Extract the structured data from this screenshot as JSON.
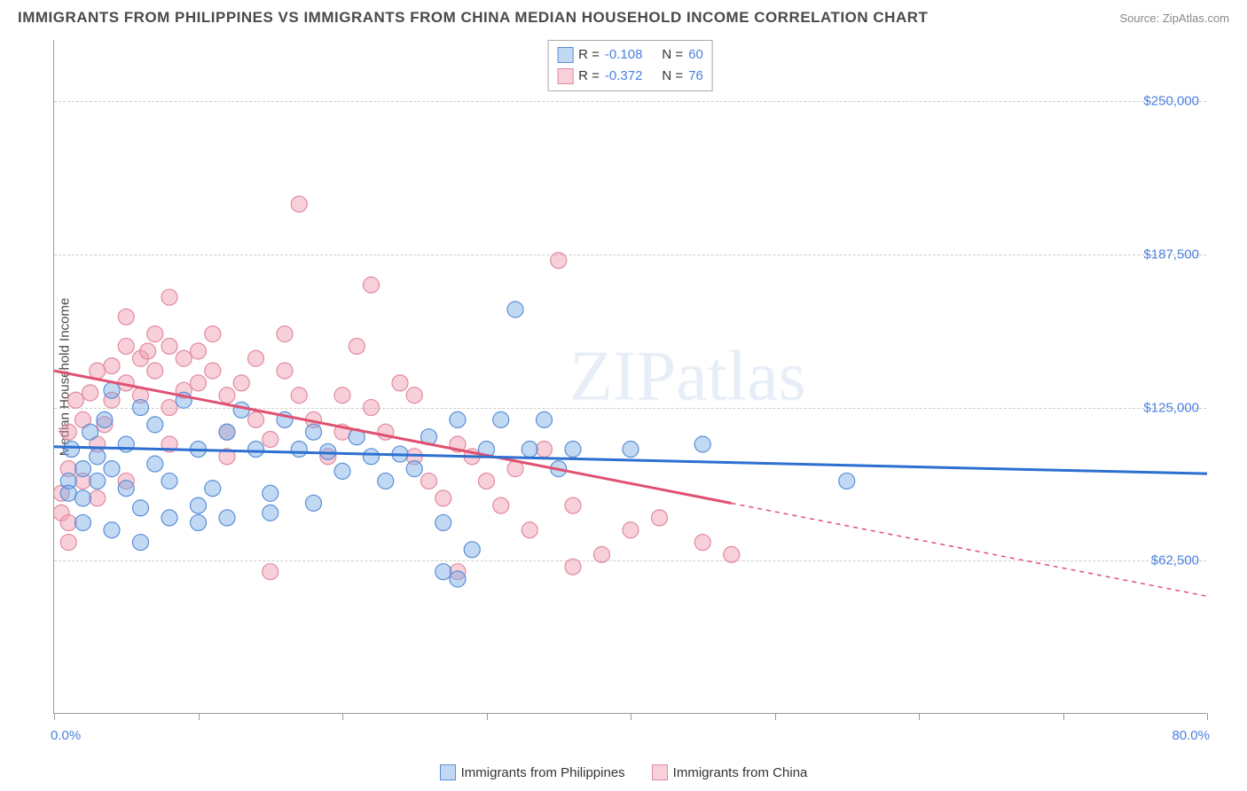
{
  "title": "IMMIGRANTS FROM PHILIPPINES VS IMMIGRANTS FROM CHINA MEDIAN HOUSEHOLD INCOME CORRELATION CHART",
  "source": "Source: ZipAtlas.com",
  "ylabel": "Median Household Income",
  "watermark": "ZIPatlas",
  "xlim": [
    0.0,
    80.0
  ],
  "ylim": [
    0,
    275000
  ],
  "xlim_labels": [
    "0.0%",
    "80.0%"
  ],
  "yticks": [
    62500,
    125000,
    187500,
    250000
  ],
  "ytick_labels": [
    "$62,500",
    "$125,000",
    "$187,500",
    "$250,000"
  ],
  "xtick_positions": [
    0,
    10,
    20,
    30,
    40,
    50,
    60,
    70,
    80
  ],
  "colors": {
    "series_a_fill": "rgba(120,170,230,0.45)",
    "series_a_stroke": "#5b8fd6",
    "series_b_fill": "rgba(240,150,170,0.45)",
    "series_b_stroke": "#e08aa0",
    "trend_a": "#2d6fd0",
    "trend_b": "#e05070",
    "grid": "#cccccc",
    "axis": "#999999",
    "tick_text": "#4a7fe0",
    "label_text": "#4a4a4a"
  },
  "stats_box": {
    "rows": [
      {
        "swatch": "a",
        "r_label": "R =",
        "r": "-0.108",
        "n_label": "N =",
        "n": "60"
      },
      {
        "swatch": "b",
        "r_label": "R =",
        "r": "-0.372",
        "n_label": "N =",
        "n": "76"
      }
    ]
  },
  "legend": [
    {
      "swatch": "a",
      "label": "Immigrants from Philippines"
    },
    {
      "swatch": "b",
      "label": "Immigrants from China"
    }
  ],
  "series_a": {
    "name": "Immigrants from Philippines",
    "points": [
      [
        1,
        95000
      ],
      [
        1,
        90000
      ],
      [
        1.2,
        108000
      ],
      [
        2,
        100000
      ],
      [
        2,
        88000
      ],
      [
        2.5,
        115000
      ],
      [
        3,
        105000
      ],
      [
        3,
        95000
      ],
      [
        3.5,
        120000
      ],
      [
        4,
        132000
      ],
      [
        4,
        100000
      ],
      [
        5,
        110000
      ],
      [
        5,
        92000
      ],
      [
        6,
        125000
      ],
      [
        6,
        84000
      ],
      [
        7,
        118000
      ],
      [
        7,
        102000
      ],
      [
        8,
        95000
      ],
      [
        8,
        80000
      ],
      [
        9,
        128000
      ],
      [
        10,
        108000
      ],
      [
        10,
        85000
      ],
      [
        11,
        92000
      ],
      [
        12,
        115000
      ],
      [
        12,
        80000
      ],
      [
        13,
        124000
      ],
      [
        14,
        108000
      ],
      [
        15,
        82000
      ],
      [
        15,
        90000
      ],
      [
        16,
        120000
      ],
      [
        17,
        108000
      ],
      [
        18,
        115000
      ],
      [
        18,
        86000
      ],
      [
        19,
        107000
      ],
      [
        20,
        99000
      ],
      [
        21,
        113000
      ],
      [
        22,
        105000
      ],
      [
        23,
        95000
      ],
      [
        24,
        106000
      ],
      [
        25,
        100000
      ],
      [
        26,
        113000
      ],
      [
        27,
        78000
      ],
      [
        27,
        58000
      ],
      [
        28,
        120000
      ],
      [
        28,
        55000
      ],
      [
        29,
        67000
      ],
      [
        30,
        108000
      ],
      [
        31,
        120000
      ],
      [
        32,
        165000
      ],
      [
        33,
        108000
      ],
      [
        34,
        120000
      ],
      [
        35,
        100000
      ],
      [
        36,
        108000
      ],
      [
        40,
        108000
      ],
      [
        45,
        110000
      ],
      [
        55,
        95000
      ],
      [
        2,
        78000
      ],
      [
        4,
        75000
      ],
      [
        6,
        70000
      ],
      [
        10,
        78000
      ]
    ],
    "trend": {
      "x1": 0,
      "y1": 109000,
      "x2": 80,
      "y2": 98000,
      "solid_to_x": 80
    }
  },
  "series_b": {
    "name": "Immigrants from China",
    "points": [
      [
        0.5,
        90000
      ],
      [
        0.5,
        82000
      ],
      [
        1,
        115000
      ],
      [
        1,
        100000
      ],
      [
        1,
        78000
      ],
      [
        1.5,
        128000
      ],
      [
        2,
        120000
      ],
      [
        2,
        95000
      ],
      [
        2.5,
        131000
      ],
      [
        3,
        140000
      ],
      [
        3,
        110000
      ],
      [
        3.5,
        118000
      ],
      [
        4,
        142000
      ],
      [
        4,
        128000
      ],
      [
        5,
        150000
      ],
      [
        5,
        135000
      ],
      [
        5,
        162000
      ],
      [
        6,
        145000
      ],
      [
        6,
        130000
      ],
      [
        6.5,
        148000
      ],
      [
        7,
        155000
      ],
      [
        7,
        140000
      ],
      [
        8,
        150000
      ],
      [
        8,
        125000
      ],
      [
        8,
        170000
      ],
      [
        9,
        145000
      ],
      [
        9,
        132000
      ],
      [
        10,
        148000
      ],
      [
        10,
        135000
      ],
      [
        11,
        155000
      ],
      [
        11,
        140000
      ],
      [
        12,
        130000
      ],
      [
        12,
        115000
      ],
      [
        13,
        135000
      ],
      [
        14,
        120000
      ],
      [
        14,
        145000
      ],
      [
        15,
        112000
      ],
      [
        16,
        140000
      ],
      [
        16,
        155000
      ],
      [
        17,
        130000
      ],
      [
        17,
        208000
      ],
      [
        18,
        120000
      ],
      [
        19,
        105000
      ],
      [
        20,
        115000
      ],
      [
        20,
        130000
      ],
      [
        21,
        150000
      ],
      [
        22,
        125000
      ],
      [
        22,
        175000
      ],
      [
        23,
        115000
      ],
      [
        24,
        135000
      ],
      [
        25,
        130000
      ],
      [
        25,
        105000
      ],
      [
        26,
        95000
      ],
      [
        27,
        88000
      ],
      [
        28,
        110000
      ],
      [
        28,
        58000
      ],
      [
        29,
        105000
      ],
      [
        30,
        95000
      ],
      [
        31,
        85000
      ],
      [
        32,
        100000
      ],
      [
        33,
        75000
      ],
      [
        34,
        108000
      ],
      [
        35,
        185000
      ],
      [
        36,
        85000
      ],
      [
        36,
        60000
      ],
      [
        38,
        65000
      ],
      [
        40,
        75000
      ],
      [
        42,
        80000
      ],
      [
        45,
        70000
      ],
      [
        47,
        65000
      ],
      [
        1,
        70000
      ],
      [
        3,
        88000
      ],
      [
        5,
        95000
      ],
      [
        8,
        110000
      ],
      [
        12,
        105000
      ],
      [
        15,
        58000
      ]
    ],
    "trend": {
      "x1": 0,
      "y1": 140000,
      "x2": 80,
      "y2": 48000,
      "solid_to_x": 47
    }
  },
  "marker_radius": 9,
  "line_width": 3
}
